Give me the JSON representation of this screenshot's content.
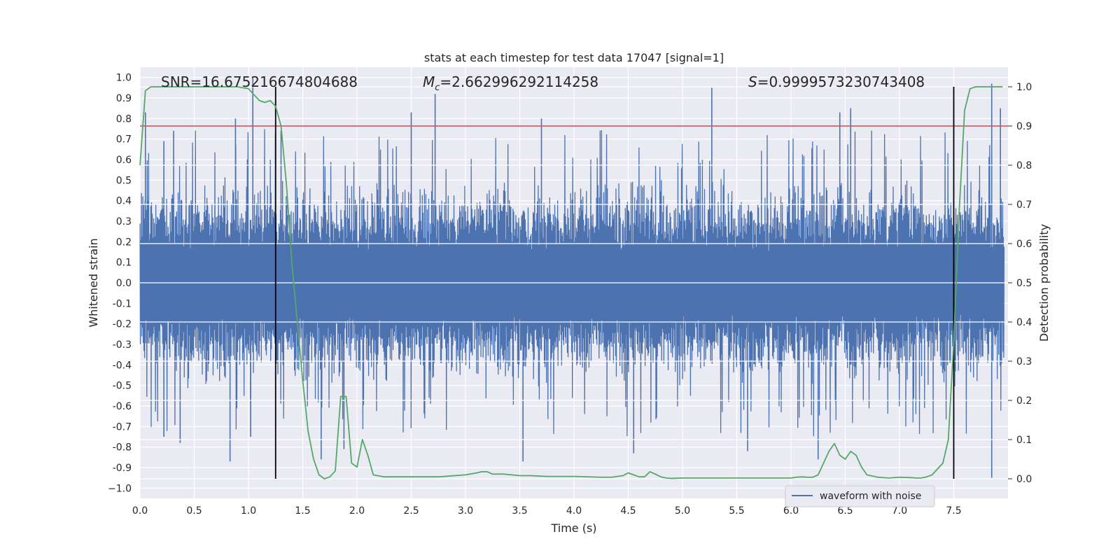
{
  "chart_data": {
    "type": "line",
    "title": "stats at each timestep for test data 17047 [signal=1]",
    "xlabel": "Time (s)",
    "ylabel": "Whitened strain",
    "y2label": "Detection probability",
    "xlim": [
      0.0,
      8.0
    ],
    "ylim": [
      -1.05,
      1.05
    ],
    "y2lim": [
      -0.05,
      1.05
    ],
    "x_ticks": [
      "0.0",
      "0.5",
      "1.0",
      "1.5",
      "2.0",
      "2.5",
      "3.0",
      "3.5",
      "4.0",
      "4.5",
      "5.0",
      "5.5",
      "6.0",
      "6.5",
      "7.0",
      "7.5"
    ],
    "y_ticks": [
      "1.0",
      "0.9",
      "0.8",
      "0.7",
      "0.6",
      "0.5",
      "0.4",
      "0.3",
      "0.2",
      "0.1",
      "0.0",
      "-0.1",
      "-0.2",
      "-0.3",
      "-0.4",
      "-0.5",
      "-0.6",
      "-0.7",
      "-0.8",
      "-0.9",
      "−1.0"
    ],
    "y2_ticks": [
      "1.0",
      "0.9",
      "0.8",
      "0.7",
      "0.6",
      "0.5",
      "0.4",
      "0.3",
      "0.2",
      "0.1",
      "0.0"
    ],
    "annotations": {
      "snr": "SNR=16.675216674804688",
      "mc_symbol": "M",
      "mc_sub": "c",
      "mc_value": "=2.662996292114258",
      "s_symbol": "S",
      "s_value": "=0.9999573230743408"
    },
    "legend": {
      "placement": "bottom-right",
      "entries": [
        "waveform with noise"
      ]
    },
    "grid": true,
    "threshold": {
      "value": 0.9,
      "axis": "right",
      "color": "#c44e52"
    },
    "signal_bounds": [
      1.25,
      7.5
    ],
    "series": [
      {
        "name": "waveform with noise",
        "color": "#4c72b0",
        "axis": "left",
        "kind": "noise",
        "core_envelope": [
          0.28,
          0.52
        ],
        "notable_peaks": [
          {
            "t": 0.05,
            "v": 0.83
          },
          {
            "t": 0.22,
            "v": 0.69
          },
          {
            "t": 0.31,
            "v": 0.74
          },
          {
            "t": 0.88,
            "v": 0.8
          },
          {
            "t": 1.04,
            "v": 1.0
          },
          {
            "t": 1.3,
            "v": 0.74
          },
          {
            "t": 2.5,
            "v": 0.83
          },
          {
            "t": 2.72,
            "v": 0.92
          },
          {
            "t": 3.7,
            "v": 0.8
          },
          {
            "t": 5.27,
            "v": 0.95
          },
          {
            "t": 6.45,
            "v": 0.83
          },
          {
            "t": 6.55,
            "v": 0.85
          },
          {
            "t": 7.85,
            "v": 0.97
          },
          {
            "t": 7.93,
            "v": 0.85
          }
        ],
        "notable_troughs": [
          {
            "t": 0.22,
            "v": -0.75
          },
          {
            "t": 0.37,
            "v": -0.78
          },
          {
            "t": 0.83,
            "v": -0.87
          },
          {
            "t": 1.02,
            "v": -0.75
          },
          {
            "t": 1.67,
            "v": -0.86
          },
          {
            "t": 1.88,
            "v": -0.81
          },
          {
            "t": 3.53,
            "v": -0.87
          },
          {
            "t": 4.55,
            "v": -0.83
          },
          {
            "t": 5.6,
            "v": -0.82
          },
          {
            "t": 6.25,
            "v": -0.86
          },
          {
            "t": 7.85,
            "v": -0.95
          }
        ]
      },
      {
        "name": "",
        "color": "#55a868",
        "axis": "right",
        "kind": "line",
        "x": [
          0.0,
          0.05,
          0.1,
          0.15,
          0.2,
          0.3,
          0.4,
          0.5,
          0.6,
          0.7,
          0.8,
          0.9,
          1.0,
          1.05,
          1.1,
          1.15,
          1.2,
          1.25,
          1.3,
          1.35,
          1.4,
          1.45,
          1.5,
          1.55,
          1.6,
          1.65,
          1.7,
          1.75,
          1.8,
          1.85,
          1.9,
          1.95,
          2.0,
          2.05,
          2.1,
          2.15,
          2.25,
          2.5,
          2.75,
          3.0,
          3.1,
          3.15,
          3.2,
          3.25,
          3.35,
          3.5,
          3.6,
          3.75,
          4.0,
          4.25,
          4.35,
          4.45,
          4.5,
          4.55,
          4.6,
          4.65,
          4.7,
          4.75,
          4.8,
          4.85,
          4.9,
          5.0,
          5.25,
          5.5,
          5.75,
          6.0,
          6.05,
          6.1,
          6.15,
          6.2,
          6.25,
          6.3,
          6.35,
          6.4,
          6.45,
          6.5,
          6.55,
          6.6,
          6.65,
          6.7,
          6.8,
          6.9,
          7.0,
          7.1,
          7.15,
          7.2,
          7.25,
          7.3,
          7.35,
          7.4,
          7.45,
          7.5,
          7.55,
          7.6,
          7.65,
          7.7,
          7.75,
          7.8,
          7.85,
          7.9,
          7.95
        ],
        "y": [
          0.8,
          0.99,
          1.0,
          1.0,
          1.0,
          1.0,
          1.0,
          1.0,
          1.0,
          1.0,
          1.0,
          1.0,
          0.995,
          0.98,
          0.965,
          0.96,
          0.965,
          0.95,
          0.9,
          0.75,
          0.55,
          0.4,
          0.25,
          0.12,
          0.05,
          0.01,
          0.0,
          0.005,
          0.02,
          0.21,
          0.21,
          0.04,
          0.03,
          0.1,
          0.06,
          0.01,
          0.005,
          0.005,
          0.005,
          0.01,
          0.015,
          0.018,
          0.018,
          0.012,
          0.012,
          0.008,
          0.008,
          0.006,
          0.006,
          0.004,
          0.004,
          0.008,
          0.015,
          0.01,
          0.005,
          0.005,
          0.018,
          0.012,
          0.005,
          0.002,
          0.001,
          0.002,
          0.002,
          0.002,
          0.002,
          0.002,
          0.004,
          0.005,
          0.004,
          0.004,
          0.01,
          0.04,
          0.07,
          0.09,
          0.06,
          0.05,
          0.07,
          0.06,
          0.03,
          0.01,
          0.004,
          0.002,
          0.004,
          0.003,
          0.002,
          0.002,
          0.005,
          0.01,
          0.025,
          0.04,
          0.1,
          0.35,
          0.68,
          0.94,
          0.995,
          1.0,
          1.0,
          1.0,
          1.0,
          1.0,
          1.0
        ]
      }
    ]
  }
}
